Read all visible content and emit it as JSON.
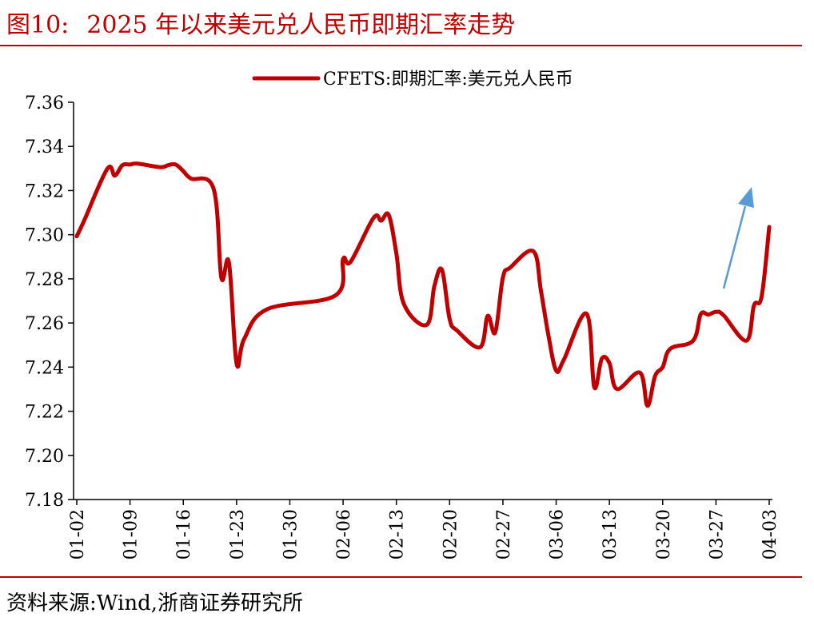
{
  "header": {
    "figure_number": "图10:",
    "title": "2025 年以来美元兑人民币即期汇率走势"
  },
  "footer": {
    "source": "资料来源:Wind,浙商证券研究所"
  },
  "colors": {
    "accent": "#c00000",
    "series": "#c00000",
    "arrow": "#5b9bd5"
  },
  "chart_data": {
    "type": "line",
    "legend": {
      "position": "top-center",
      "labels": [
        "CFETS:即期汇率:美元兑人民币"
      ]
    },
    "grid": false,
    "ylim": [
      7.18,
      7.36
    ],
    "yticks": [
      "7.18",
      "7.20",
      "7.22",
      "7.24",
      "7.26",
      "7.28",
      "7.30",
      "7.32",
      "7.34",
      "7.36"
    ],
    "xticks": [
      "01-02",
      "01-09",
      "01-16",
      "01-23",
      "01-30",
      "02-06",
      "02-13",
      "02-20",
      "02-27",
      "03-06",
      "03-13",
      "03-20",
      "03-27",
      "04-03"
    ],
    "series": [
      {
        "name": "CFETS:即期汇率:美元兑人民币",
        "x": [
          "01-02",
          "01-03",
          "01-06",
          "01-07",
          "01-08",
          "01-09",
          "01-10",
          "01-13",
          "01-14",
          "01-15",
          "01-16",
          "01-17",
          "01-20",
          "01-21",
          "01-22",
          "01-23",
          "01-24",
          "01-27",
          "02-05",
          "02-06",
          "02-07",
          "02-10",
          "02-11",
          "02-12",
          "02-13",
          "02-14",
          "02-17",
          "02-18",
          "02-19",
          "02-20",
          "02-21",
          "02-24",
          "02-25",
          "02-26",
          "02-27",
          "02-28",
          "03-03",
          "03-04",
          "03-05",
          "03-06",
          "03-07",
          "03-10",
          "03-11",
          "03-12",
          "03-13",
          "03-14",
          "03-17",
          "03-18",
          "03-19",
          "03-20",
          "03-21",
          "03-24",
          "03-25",
          "03-26",
          "03-27",
          "03-28",
          "03-31",
          "04-01",
          "04-02",
          "04-03"
        ],
        "values": [
          7.2993,
          7.3066,
          7.3298,
          7.3268,
          7.3315,
          7.3318,
          7.3322,
          7.3306,
          7.3315,
          7.3318,
          7.3288,
          7.3255,
          7.3206,
          7.2805,
          7.2874,
          7.2418,
          7.2528,
          7.2662,
          7.2725,
          7.289,
          7.2878,
          7.3076,
          7.3064,
          7.3089,
          7.2915,
          7.2685,
          7.2592,
          7.2768,
          7.284,
          7.2618,
          7.2565,
          7.249,
          7.2632,
          7.2558,
          7.2805,
          7.2852,
          7.2925,
          7.2746,
          7.2541,
          7.2385,
          7.2433,
          7.2642,
          7.231,
          7.2438,
          7.2418,
          7.2301,
          7.2375,
          7.2225,
          7.236,
          7.24,
          7.2483,
          7.252,
          7.264,
          7.2638,
          7.265,
          7.2635,
          7.252,
          7.268,
          7.272,
          7.3035
        ]
      }
    ]
  }
}
